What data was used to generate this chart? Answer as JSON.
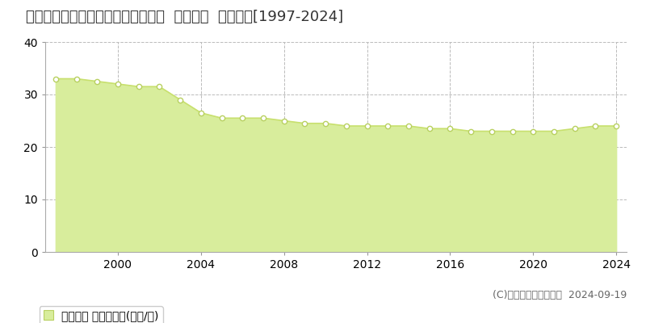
{
  "title": "愛知県豊川市白鳥町下郷中６７番５  基準地価  地価推移[1997-2024]",
  "years": [
    1997,
    1998,
    1999,
    2000,
    2001,
    2002,
    2003,
    2004,
    2005,
    2006,
    2007,
    2008,
    2009,
    2010,
    2011,
    2012,
    2013,
    2014,
    2015,
    2016,
    2017,
    2018,
    2019,
    2020,
    2021,
    2022,
    2023,
    2024
  ],
  "values": [
    33.0,
    33.0,
    32.5,
    32.0,
    31.5,
    31.5,
    29.0,
    26.5,
    25.5,
    25.5,
    25.5,
    25.0,
    24.5,
    24.5,
    24.0,
    24.0,
    24.0,
    24.0,
    23.5,
    23.5,
    23.0,
    23.0,
    23.0,
    23.0,
    23.0,
    23.5,
    24.0,
    24.0
  ],
  "line_color": "#c8e06e",
  "fill_color": "#d8ed9c",
  "marker_facecolor": "#ffffff",
  "marker_edge_color": "#b8d060",
  "ylim": [
    0,
    40
  ],
  "yticks": [
    0,
    10,
    20,
    30,
    40
  ],
  "xticks": [
    2000,
    2004,
    2008,
    2012,
    2016,
    2020,
    2024
  ],
  "grid_color": "#bbbbbb",
  "background_color": "#ffffff",
  "legend_label": "基準地価 平均坪単価(万円/坪)",
  "copyright_text": "(C)土地価格ドットコム  2024-09-19",
  "title_fontsize": 13,
  "axis_fontsize": 10,
  "legend_fontsize": 10,
  "copyright_fontsize": 9
}
